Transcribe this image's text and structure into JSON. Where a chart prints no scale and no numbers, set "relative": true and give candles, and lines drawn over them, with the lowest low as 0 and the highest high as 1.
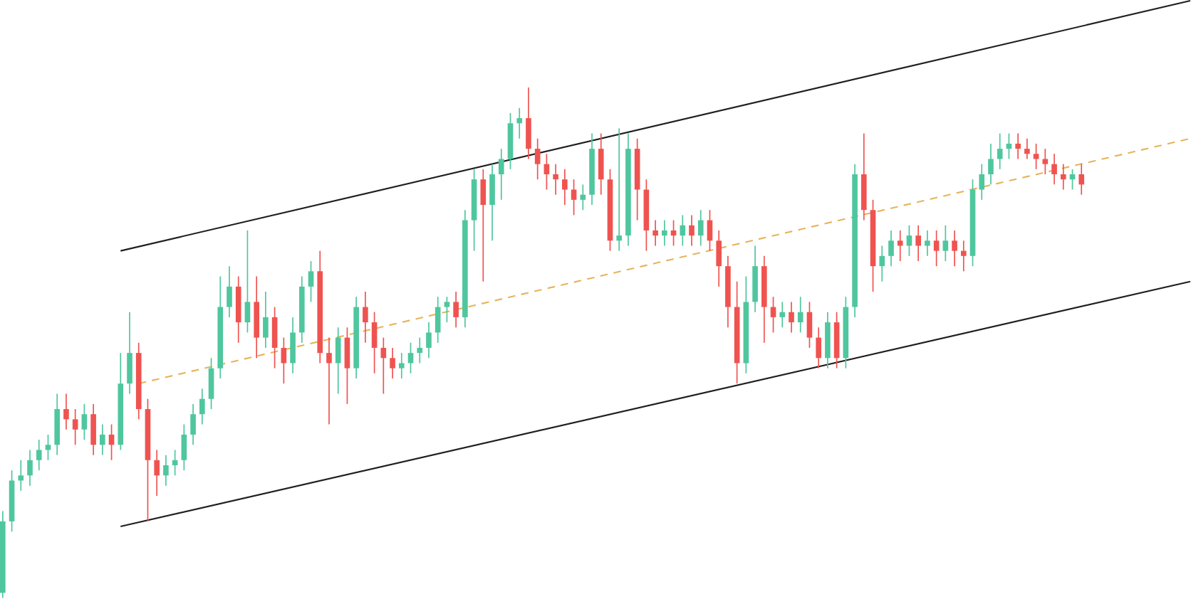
{
  "chart_data": {
    "type": "candlestick",
    "relative": true,
    "categories": [
      null,
      null,
      null,
      null,
      null,
      null,
      null,
      null,
      null,
      null,
      null,
      null,
      null,
      null,
      null,
      null,
      null,
      null,
      null,
      null,
      null,
      null,
      null,
      null,
      null,
      null,
      null,
      null,
      null,
      null,
      null,
      null,
      null,
      null,
      null,
      null,
      null,
      null,
      null,
      null,
      null,
      null,
      null,
      null,
      null,
      null,
      null,
      null,
      null,
      null,
      null,
      null,
      null,
      null,
      null,
      null,
      null,
      null,
      null,
      null,
      null,
      null,
      null,
      null,
      null,
      null,
      null,
      null,
      null,
      null,
      null,
      null,
      null,
      null,
      null,
      null,
      null,
      null,
      null,
      null,
      null,
      null,
      null,
      null,
      null,
      null,
      null,
      null,
      null,
      null,
      null,
      null,
      null,
      null,
      null,
      null,
      null,
      null,
      null,
      null,
      null,
      null,
      null,
      null,
      null,
      null,
      null,
      null,
      null,
      null,
      null,
      null,
      null,
      null,
      null,
      null,
      null,
      null,
      null,
      null,
      null,
      null,
      null,
      null,
      null,
      null,
      null,
      null,
      null,
      null,
      null,
      null
    ],
    "ohlc": [
      [
        0.01,
        0.17,
        0,
        0.15
      ],
      [
        0.15,
        0.25,
        0.13,
        0.23
      ],
      [
        0.23,
        0.27,
        0.21,
        0.24
      ],
      [
        0.24,
        0.29,
        0.22,
        0.27
      ],
      [
        0.27,
        0.31,
        0.25,
        0.29
      ],
      [
        0.29,
        0.32,
        0.27,
        0.3
      ],
      [
        0.3,
        0.4,
        0.28,
        0.37
      ],
      [
        0.37,
        0.4,
        0.33,
        0.35
      ],
      [
        0.35,
        0.37,
        0.3,
        0.33
      ],
      [
        0.33,
        0.38,
        0.31,
        0.36
      ],
      [
        0.36,
        0.38,
        0.28,
        0.3
      ],
      [
        0.3,
        0.34,
        0.28,
        0.32
      ],
      [
        0.32,
        0.34,
        0.27,
        0.3
      ],
      [
        0.3,
        0.48,
        0.29,
        0.42
      ],
      [
        0.42,
        0.56,
        0.4,
        0.48
      ],
      [
        0.48,
        0.5,
        0.35,
        0.37
      ],
      [
        0.37,
        0.39,
        0.15,
        0.27
      ],
      [
        0.27,
        0.29,
        0.2,
        0.24
      ],
      [
        0.24,
        0.28,
        0.22,
        0.26
      ],
      [
        0.26,
        0.29,
        0.24,
        0.27
      ],
      [
        0.27,
        0.34,
        0.25,
        0.32
      ],
      [
        0.32,
        0.38,
        0.3,
        0.36
      ],
      [
        0.36,
        0.41,
        0.34,
        0.39
      ],
      [
        0.39,
        0.47,
        0.37,
        0.45
      ],
      [
        0.45,
        0.63,
        0.43,
        0.57
      ],
      [
        0.57,
        0.65,
        0.55,
        0.61
      ],
      [
        0.61,
        0.63,
        0.5,
        0.54
      ],
      [
        0.54,
        0.72,
        0.52,
        0.58
      ],
      [
        0.58,
        0.63,
        0.47,
        0.51
      ],
      [
        0.51,
        0.6,
        0.49,
        0.55
      ],
      [
        0.55,
        0.57,
        0.45,
        0.49
      ],
      [
        0.49,
        0.51,
        0.42,
        0.46
      ],
      [
        0.46,
        0.55,
        0.44,
        0.52
      ],
      [
        0.52,
        0.63,
        0.5,
        0.61
      ],
      [
        0.61,
        0.66,
        0.58,
        0.64
      ],
      [
        0.64,
        0.68,
        0.46,
        0.48
      ],
      [
        0.48,
        0.51,
        0.34,
        0.46
      ],
      [
        0.46,
        0.53,
        0.4,
        0.51
      ],
      [
        0.51,
        0.53,
        0.38,
        0.45
      ],
      [
        0.45,
        0.59,
        0.43,
        0.57
      ],
      [
        0.57,
        0.6,
        0.5,
        0.54
      ],
      [
        0.54,
        0.56,
        0.44,
        0.49
      ],
      [
        0.49,
        0.51,
        0.4,
        0.47
      ],
      [
        0.47,
        0.49,
        0.43,
        0.45
      ],
      [
        0.45,
        0.48,
        0.43,
        0.46
      ],
      [
        0.46,
        0.5,
        0.44,
        0.48
      ],
      [
        0.48,
        0.51,
        0.46,
        0.49
      ],
      [
        0.49,
        0.54,
        0.47,
        0.52
      ],
      [
        0.52,
        0.59,
        0.5,
        0.57
      ],
      [
        0.57,
        0.59,
        0.54,
        0.58
      ],
      [
        0.58,
        0.6,
        0.53,
        0.55
      ],
      [
        0.55,
        0.76,
        0.53,
        0.74
      ],
      [
        0.74,
        0.84,
        0.68,
        0.82
      ],
      [
        0.82,
        0.84,
        0.62,
        0.77
      ],
      [
        0.77,
        0.85,
        0.7,
        0.83
      ],
      [
        0.83,
        0.88,
        0.78,
        0.86
      ],
      [
        0.86,
        0.95,
        0.84,
        0.93
      ],
      [
        0.93,
        0.96,
        0.9,
        0.94
      ],
      [
        0.94,
        1.0,
        0.86,
        0.88
      ],
      [
        0.88,
        0.9,
        0.82,
        0.85
      ],
      [
        0.85,
        0.87,
        0.8,
        0.83
      ],
      [
        0.83,
        0.85,
        0.79,
        0.82
      ],
      [
        0.82,
        0.84,
        0.77,
        0.8
      ],
      [
        0.8,
        0.82,
        0.75,
        0.78
      ],
      [
        0.78,
        0.81,
        0.76,
        0.79
      ],
      [
        0.79,
        0.91,
        0.77,
        0.88
      ],
      [
        0.88,
        0.91,
        0.79,
        0.82
      ],
      [
        0.82,
        0.84,
        0.68,
        0.7
      ],
      [
        0.7,
        0.92,
        0.68,
        0.71
      ],
      [
        0.71,
        0.91,
        0.69,
        0.88
      ],
      [
        0.88,
        0.9,
        0.74,
        0.8
      ],
      [
        0.8,
        0.82,
        0.68,
        0.72
      ],
      [
        0.72,
        0.74,
        0.69,
        0.71
      ],
      [
        0.71,
        0.74,
        0.69,
        0.72
      ],
      [
        0.72,
        0.74,
        0.69,
        0.71
      ],
      [
        0.71,
        0.75,
        0.69,
        0.73
      ],
      [
        0.73,
        0.75,
        0.69,
        0.71
      ],
      [
        0.71,
        0.76,
        0.69,
        0.74
      ],
      [
        0.74,
        0.76,
        0.68,
        0.7
      ],
      [
        0.7,
        0.72,
        0.61,
        0.65
      ],
      [
        0.65,
        0.67,
        0.53,
        0.57
      ],
      [
        0.57,
        0.62,
        0.42,
        0.46
      ],
      [
        0.46,
        0.63,
        0.44,
        0.58
      ],
      [
        0.58,
        0.69,
        0.56,
        0.65
      ],
      [
        0.65,
        0.67,
        0.5,
        0.57
      ],
      [
        0.57,
        0.59,
        0.52,
        0.55
      ],
      [
        0.55,
        0.58,
        0.53,
        0.56
      ],
      [
        0.56,
        0.58,
        0.52,
        0.54
      ],
      [
        0.54,
        0.59,
        0.52,
        0.56
      ],
      [
        0.56,
        0.58,
        0.49,
        0.51
      ],
      [
        0.51,
        0.53,
        0.45,
        0.47
      ],
      [
        0.47,
        0.56,
        0.45,
        0.54
      ],
      [
        0.54,
        0.56,
        0.45,
        0.47
      ],
      [
        0.47,
        0.59,
        0.45,
        0.57
      ],
      [
        0.57,
        0.85,
        0.55,
        0.83
      ],
      [
        0.83,
        0.91,
        0.74,
        0.76
      ],
      [
        0.76,
        0.78,
        0.6,
        0.65
      ],
      [
        0.65,
        0.69,
        0.62,
        0.67
      ],
      [
        0.67,
        0.72,
        0.65,
        0.7
      ],
      [
        0.7,
        0.72,
        0.66,
        0.69
      ],
      [
        0.69,
        0.73,
        0.67,
        0.71
      ],
      [
        0.71,
        0.73,
        0.66,
        0.69
      ],
      [
        0.69,
        0.72,
        0.67,
        0.7
      ],
      [
        0.7,
        0.72,
        0.65,
        0.68
      ],
      [
        0.68,
        0.73,
        0.66,
        0.7
      ],
      [
        0.7,
        0.72,
        0.65,
        0.68
      ],
      [
        0.68,
        0.7,
        0.64,
        0.67
      ],
      [
        0.67,
        0.82,
        0.65,
        0.8
      ],
      [
        0.8,
        0.85,
        0.78,
        0.83
      ],
      [
        0.83,
        0.89,
        0.81,
        0.86
      ],
      [
        0.86,
        0.91,
        0.84,
        0.88
      ],
      [
        0.88,
        0.91,
        0.86,
        0.89
      ],
      [
        0.89,
        0.91,
        0.86,
        0.88
      ],
      [
        0.88,
        0.9,
        0.86,
        0.87
      ],
      [
        0.87,
        0.89,
        0.84,
        0.86
      ],
      [
        0.86,
        0.88,
        0.83,
        0.85
      ],
      [
        0.85,
        0.87,
        0.81,
        0.83
      ],
      [
        0.83,
        0.85,
        0.8,
        0.82
      ],
      [
        0.82,
        0.84,
        0.8,
        0.83
      ],
      [
        0.83,
        0.85,
        0.79,
        0.81
      ],
      null,
      null,
      null,
      null,
      null,
      null,
      null,
      null,
      null,
      null,
      null,
      null
    ],
    "colors": [
      "#4fc69e",
      "#4fc69e",
      "#4fc69e",
      "#4fc69e",
      "#4fc69e",
      "#4fc69e",
      "#4fc69e",
      "#ef5350",
      "#ef5350",
      "#4fc69e",
      "#ef5350",
      "#4fc69e",
      "#ef5350",
      "#4fc69e",
      "#4fc69e",
      "#ef5350",
      "#ef5350",
      "#ef5350",
      "#4fc69e",
      "#4fc69e",
      "#4fc69e",
      "#4fc69e",
      "#4fc69e",
      "#4fc69e",
      "#4fc69e",
      "#4fc69e",
      "#ef5350",
      "#4fc69e",
      "#ef5350",
      "#4fc69e",
      "#ef5350",
      "#ef5350",
      "#4fc69e",
      "#4fc69e",
      "#4fc69e",
      "#ef5350",
      "#ef5350",
      "#4fc69e",
      "#ef5350",
      "#4fc69e",
      "#ef5350",
      "#ef5350",
      "#ef5350",
      "#ef5350",
      "#4fc69e",
      "#4fc69e",
      "#4fc69e",
      "#4fc69e",
      "#4fc69e",
      "#4fc69e",
      "#ef5350",
      "#4fc69e",
      "#4fc69e",
      "#ef5350",
      "#4fc69e",
      "#4fc69e",
      "#4fc69e",
      "#4fc69e",
      "#ef5350",
      "#ef5350",
      "#ef5350",
      "#ef5350",
      "#ef5350",
      "#ef5350",
      "#4fc69e",
      "#4fc69e",
      "#ef5350",
      "#ef5350",
      "#4fc69e",
      "#4fc69e",
      "#ef5350",
      "#ef5350",
      "#ef5350",
      "#4fc69e",
      "#ef5350",
      "#4fc69e",
      "#ef5350",
      "#4fc69e",
      "#ef5350",
      "#ef5350",
      "#ef5350",
      "#ef5350",
      "#4fc69e",
      "#4fc69e",
      "#ef5350",
      "#ef5350",
      "#4fc69e",
      "#ef5350",
      "#4fc69e",
      "#ef5350",
      "#ef5350",
      "#4fc69e",
      "#ef5350",
      "#4fc69e",
      "#4fc69e",
      "#ef5350",
      "#ef5350",
      "#4fc69e",
      "#4fc69e",
      "#ef5350",
      "#4fc69e",
      "#ef5350",
      "#4fc69e",
      "#ef5350",
      "#4fc69e",
      "#ef5350",
      "#ef5350",
      "#4fc69e",
      "#4fc69e",
      "#4fc69e",
      "#4fc69e",
      "#4fc69e",
      "#ef5350",
      "#ef5350",
      "#ef5350",
      "#ef5350",
      "#ef5350",
      "#ef5350",
      "#4fc69e",
      "#ef5350",
      null,
      null,
      null,
      null,
      null,
      null,
      null,
      null,
      null,
      null,
      null,
      null
    ],
    "series": [
      {
        "type": "line",
        "color": "#1f1f1f",
        "line_style": "solid",
        "values": [
          null,
          null,
          null,
          null,
          null,
          null,
          null,
          null,
          null,
          null,
          null,
          null,
          null,
          0.68,
          null,
          null,
          null,
          null,
          null,
          null,
          null,
          null,
          null,
          null,
          null,
          null,
          null,
          null,
          null,
          null,
          null,
          null,
          null,
          null,
          null,
          null,
          null,
          null,
          null,
          null,
          null,
          null,
          null,
          null,
          null,
          null,
          null,
          null,
          null,
          null,
          null,
          null,
          null,
          null,
          null,
          null,
          null,
          null,
          null,
          null,
          null,
          null,
          null,
          null,
          null,
          null,
          null,
          null,
          null,
          null,
          null,
          null,
          null,
          null,
          null,
          null,
          null,
          null,
          null,
          null,
          null,
          null,
          null,
          null,
          null,
          null,
          null,
          null,
          null,
          null,
          null,
          null,
          null,
          null,
          null,
          null,
          null,
          null,
          null,
          null,
          null,
          null,
          null,
          null,
          null,
          null,
          null,
          null,
          null,
          null,
          null,
          null,
          null,
          null,
          null,
          null,
          null,
          null,
          null,
          null,
          null,
          null,
          null,
          null,
          null,
          null,
          null,
          null,
          null,
          null,
          null,
          1.17
        ]
      },
      {
        "type": "line",
        "color": "#1f1f1f",
        "line_style": "solid",
        "values": [
          null,
          null,
          null,
          null,
          null,
          null,
          null,
          null,
          null,
          null,
          null,
          null,
          null,
          0.14,
          null,
          null,
          null,
          null,
          null,
          null,
          null,
          null,
          null,
          null,
          null,
          null,
          null,
          null,
          null,
          null,
          null,
          null,
          null,
          null,
          null,
          null,
          null,
          null,
          null,
          null,
          null,
          null,
          null,
          null,
          null,
          null,
          null,
          null,
          null,
          null,
          null,
          null,
          null,
          null,
          null,
          null,
          null,
          null,
          null,
          null,
          null,
          null,
          null,
          null,
          null,
          null,
          null,
          null,
          null,
          null,
          null,
          null,
          null,
          null,
          null,
          null,
          null,
          null,
          null,
          null,
          null,
          null,
          null,
          null,
          null,
          null,
          null,
          null,
          null,
          null,
          null,
          null,
          null,
          null,
          null,
          null,
          null,
          null,
          null,
          null,
          null,
          null,
          null,
          null,
          null,
          null,
          null,
          null,
          null,
          null,
          null,
          null,
          null,
          null,
          null,
          null,
          null,
          null,
          null,
          null,
          null,
          null,
          null,
          null,
          null,
          null,
          null,
          null,
          null,
          null,
          null,
          0.62
        ]
      },
      {
        "type": "line",
        "color": "#e6b45a",
        "line_style": "dashed",
        "values": [
          null,
          null,
          null,
          null,
          null,
          null,
          null,
          null,
          null,
          null,
          null,
          null,
          null,
          null,
          null,
          0.42,
          null,
          null,
          null,
          null,
          null,
          null,
          null,
          null,
          null,
          null,
          null,
          null,
          null,
          null,
          null,
          null,
          null,
          null,
          null,
          null,
          null,
          null,
          null,
          null,
          null,
          null,
          null,
          null,
          null,
          null,
          null,
          null,
          null,
          null,
          null,
          null,
          null,
          null,
          null,
          null,
          null,
          null,
          null,
          null,
          null,
          null,
          null,
          null,
          null,
          null,
          null,
          null,
          null,
          null,
          null,
          null,
          null,
          null,
          null,
          null,
          null,
          null,
          null,
          null,
          null,
          null,
          null,
          null,
          null,
          null,
          null,
          null,
          null,
          null,
          null,
          null,
          null,
          null,
          null,
          null,
          null,
          null,
          null,
          null,
          null,
          null,
          null,
          null,
          null,
          null,
          null,
          null,
          null,
          null,
          null,
          null,
          null,
          null,
          null,
          null,
          null,
          null,
          null,
          null,
          null,
          null,
          null,
          null,
          null,
          null,
          null,
          null,
          null,
          null,
          null,
          0.9
        ]
      }
    ]
  }
}
